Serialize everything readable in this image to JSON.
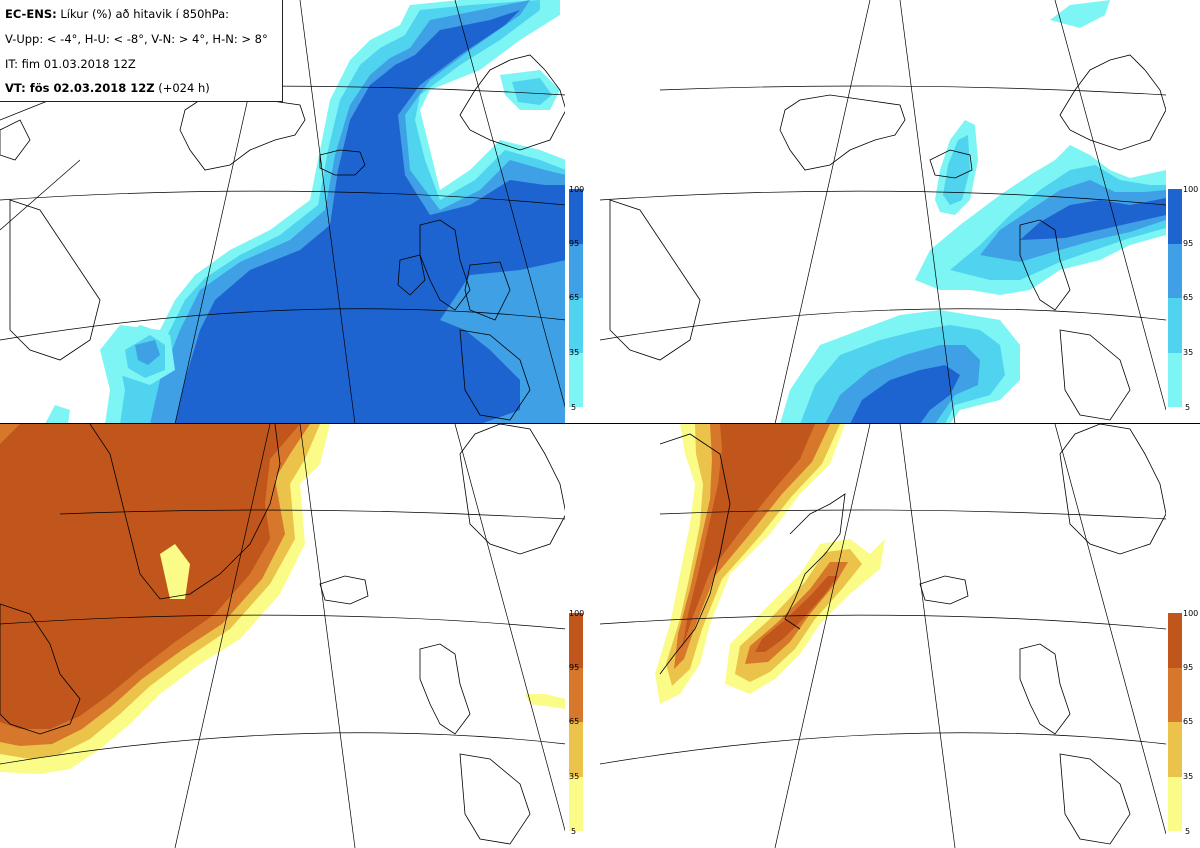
{
  "header": {
    "model_label": "EC-ENS:",
    "title_rest": " Líkur (%) að hitavik í 850hPa:",
    "thresholds": "V-Upp: < -4°, H-U: < -8°, V-N: > 4°, H-N: > 8°",
    "init_time": "IT: fim 01.03.2018 12Z",
    "valid_label": "VT: fös 02.03.2018 12Z",
    "lead": " (+024 h)"
  },
  "colorbar_ticks": [
    "100",
    "95",
    "65",
    "35",
    "5"
  ],
  "colors": {
    "blue_scale": [
      "#7ef5f5",
      "#4fd3ee",
      "#3fa0e6",
      "#1e64d0"
    ],
    "brown_scale": [
      "#fbfb88",
      "#ebc24a",
      "#d7772c",
      "#c0561c"
    ],
    "coast": "#000000",
    "grid": "#000000"
  },
  "panels": [
    {
      "id": "upper-left",
      "variable": "V-Upp",
      "scale": "blue"
    },
    {
      "id": "upper-right",
      "variable": "H-U",
      "scale": "blue"
    },
    {
      "id": "lower-left",
      "variable": "V-N",
      "scale": "brown"
    },
    {
      "id": "lower-right",
      "variable": "H-N",
      "scale": "brown"
    }
  ]
}
